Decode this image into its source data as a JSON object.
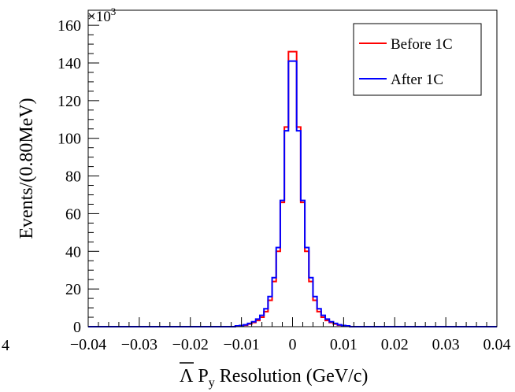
{
  "chart_data": {
    "type": "histogram",
    "ylabel": "Events/(0.80MeV)",
    "xlabel_parts": {
      "symbol": "Λ",
      "variable": "P",
      "subscript": "y",
      "rest": " Resolution (GeV/c)"
    },
    "y_multiplier_label": "×10",
    "y_multiplier_exponent": "3",
    "edge_stub_label": "4",
    "xlim": [
      -0.04,
      0.04
    ],
    "ylim": [
      0,
      168
    ],
    "x_tick_values": [
      -0.04,
      -0.03,
      -0.02,
      -0.01,
      0,
      0.01,
      0.02,
      0.03,
      0.04
    ],
    "x_tick_labels": [
      "−0.04",
      "−0.03",
      "−0.02",
      "−0.01",
      "0",
      "0.01",
      "0.02",
      "0.03",
      "0.04"
    ],
    "y_tick_values": [
      0,
      20,
      40,
      60,
      80,
      100,
      120,
      140,
      160
    ],
    "y_tick_labels": [
      "0",
      "20",
      "40",
      "60",
      "80",
      "100",
      "120",
      "140",
      "160"
    ],
    "bin_width": 0.0008,
    "x_range": [
      -0.04,
      0.04
    ],
    "units": "thousands of events",
    "legend_position": "top-right",
    "series": [
      {
        "name": "Before 1C",
        "color": "#ff0000",
        "bin_centers": [
          -0.0108,
          -0.01,
          -0.0092,
          -0.0084,
          -0.0076,
          -0.0068,
          -0.006,
          -0.0052,
          -0.0044,
          -0.0036,
          -0.0028,
          -0.002,
          -0.0012,
          -0.0004,
          0.0004,
          0.0012,
          0.002,
          0.0028,
          0.0036,
          0.0044,
          0.0052,
          0.006,
          0.0068,
          0.0076,
          0.0084,
          0.0092,
          0.01,
          0.0108
        ],
        "values": [
          0.3,
          0.5,
          0.8,
          1.4,
          2.2,
          3.3,
          5.0,
          8.0,
          14.0,
          24.0,
          40.0,
          66.0,
          106.0,
          146.0,
          146.0,
          106.0,
          66.0,
          40.0,
          24.0,
          14.0,
          8.0,
          5.0,
          3.3,
          2.2,
          1.4,
          0.8,
          0.5,
          0.3
        ]
      },
      {
        "name": "After 1C",
        "color": "#0000ff",
        "bin_centers": [
          -0.0108,
          -0.01,
          -0.0092,
          -0.0084,
          -0.0076,
          -0.0068,
          -0.006,
          -0.0052,
          -0.0044,
          -0.0036,
          -0.0028,
          -0.002,
          -0.0012,
          -0.0004,
          0.0004,
          0.0012,
          0.002,
          0.0028,
          0.0036,
          0.0044,
          0.0052,
          0.006,
          0.0068,
          0.0076,
          0.0084,
          0.0092,
          0.01,
          0.0108
        ],
        "values": [
          0.4,
          0.6,
          1.0,
          1.7,
          2.6,
          4.0,
          6.0,
          9.5,
          16.0,
          26.0,
          42.0,
          67.0,
          104.0,
          141.0,
          141.0,
          104.0,
          67.0,
          42.0,
          26.0,
          16.0,
          9.5,
          6.0,
          4.0,
          2.6,
          1.7,
          1.0,
          0.6,
          0.4
        ]
      }
    ]
  }
}
